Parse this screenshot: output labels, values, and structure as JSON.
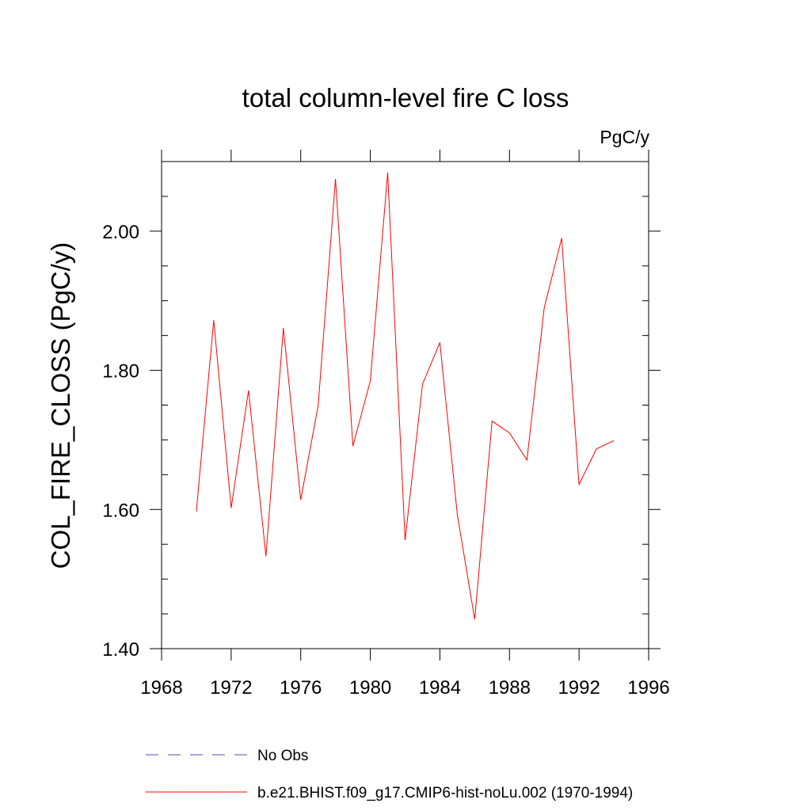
{
  "chart_data": {
    "type": "line",
    "title": "total column-level fire C loss",
    "units": "PgC/y",
    "xlabel": "",
    "ylabel": "COL_FIRE_CLOSS  (PgC/y)",
    "xlim": [
      1968,
      1996
    ],
    "ylim": [
      1.4,
      2.1
    ],
    "xticks": [
      1968,
      1972,
      1976,
      1980,
      1984,
      1988,
      1992,
      1996
    ],
    "xtick_labels": [
      "1968",
      "1972",
      "1976",
      "1980",
      "1984",
      "1988",
      "1992",
      "1996"
    ],
    "yticks": [
      1.4,
      1.6,
      1.8,
      2.0
    ],
    "ytick_labels": [
      "1.40",
      "1.60",
      "1.80",
      "2.00"
    ],
    "grid": false,
    "legend_position": "bottom",
    "series": [
      {
        "name": "b.e21.BHIST.f09_g17.CMIP6-hist-noLu.002 (1970-1994)",
        "color": "#ff0000",
        "style": "solid",
        "x": [
          1970,
          1971,
          1972,
          1973,
          1974,
          1975,
          1976,
          1977,
          1978,
          1979,
          1980,
          1981,
          1982,
          1983,
          1984,
          1985,
          1986,
          1987,
          1988,
          1989,
          1990,
          1991,
          1992,
          1993,
          1994
        ],
        "y": [
          1.597,
          1.872,
          1.602,
          1.771,
          1.533,
          1.861,
          1.614,
          1.749,
          2.075,
          1.691,
          1.785,
          2.084,
          1.556,
          1.78,
          1.84,
          1.593,
          1.442,
          1.727,
          1.71,
          1.671,
          1.89,
          1.99,
          1.636,
          1.687,
          1.699
        ]
      }
    ],
    "legend": [
      {
        "label": "No Obs",
        "color": "#4b4bc8",
        "style": "dashed"
      },
      {
        "label": "b.e21.BHIST.f09_g17.CMIP6-hist-noLu.002 (1970-1994)",
        "color": "#ff0000",
        "style": "solid"
      }
    ]
  }
}
